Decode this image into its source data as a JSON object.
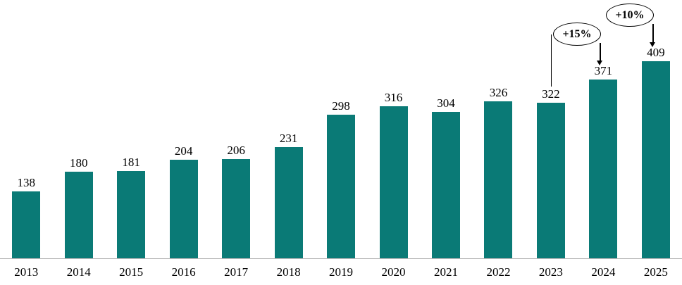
{
  "chart_data": {
    "type": "bar",
    "title": "",
    "xlabel": "",
    "ylabel": "",
    "categories": [
      "2013",
      "2014",
      "2015",
      "2016",
      "2017",
      "2018",
      "2019",
      "2020",
      "2021",
      "2022",
      "2023",
      "2024",
      "2025"
    ],
    "values": [
      138,
      180,
      181,
      204,
      206,
      231,
      298,
      316,
      304,
      326,
      322,
      371,
      409
    ],
    "ylim": [
      0,
      430
    ],
    "grid": false,
    "legend": "none",
    "data_labels": true,
    "bar_color": "#0a7a76",
    "axis_line_color": "#b8b8b8",
    "annotations": [
      {
        "label": "+15%",
        "from": "2023",
        "to": "2024",
        "connector": true
      },
      {
        "label": "+10%",
        "from": "2024",
        "to": "2025",
        "connector": false
      }
    ]
  }
}
